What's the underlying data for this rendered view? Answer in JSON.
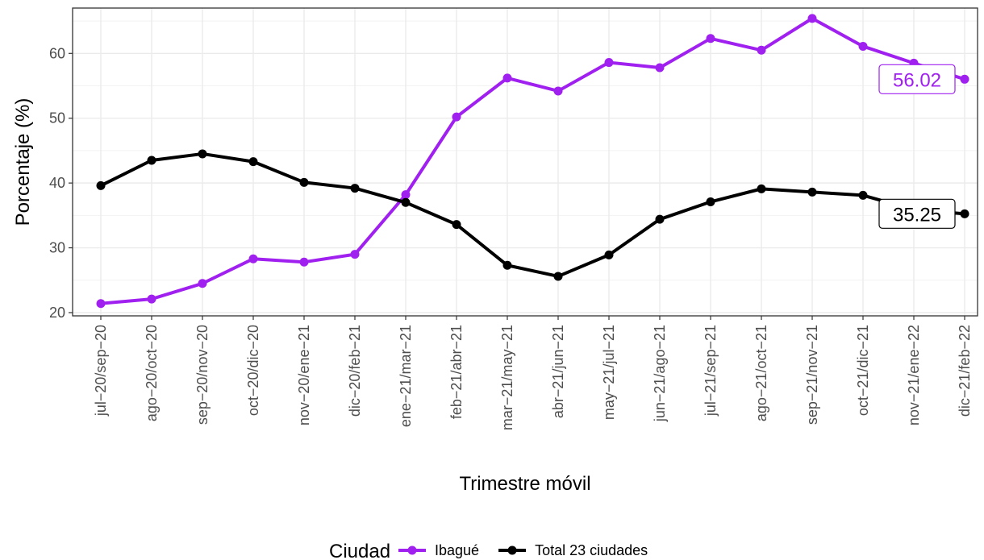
{
  "chart_data": {
    "type": "line",
    "xlabel": "Trimestre móvil",
    "ylabel": "Porcentaje (%)",
    "categories": [
      "jul−20/sep−20",
      "ago−20/oct−20",
      "sep−20/nov−20",
      "oct−20/dic−20",
      "nov−20/ene−21",
      "dic−20/feb−21",
      "ene−21/mar−21",
      "feb−21/abr−21",
      "mar−21/may−21",
      "abr−21/jun−21",
      "may−21/jul−21",
      "jun−21/ago−21",
      "jul−21/sep−21",
      "ago−21/oct−21",
      "sep−21/nov−21",
      "oct−21/dic−21",
      "nov−21/ene−22",
      "dic−21/feb−22"
    ],
    "ylim": [
      19.5,
      67
    ],
    "yticks": [
      20,
      30,
      40,
      50,
      60
    ],
    "grid": true,
    "legend_position": "bottom",
    "legend_title": "Ciudad",
    "series": [
      {
        "name": "Ibagué",
        "color": "#a020f0",
        "values": [
          21.4,
          22.1,
          24.5,
          28.3,
          27.8,
          29.0,
          38.2,
          50.2,
          56.2,
          54.2,
          58.6,
          57.8,
          62.3,
          60.5,
          65.4,
          61.1,
          58.5,
          56.02
        ],
        "end_label": "56.02"
      },
      {
        "name": "Total 23 ciudades",
        "color": "#000000",
        "values": [
          39.6,
          43.5,
          44.5,
          43.3,
          40.1,
          39.2,
          37.0,
          33.6,
          27.3,
          25.6,
          28.9,
          34.4,
          37.1,
          39.1,
          38.6,
          38.1,
          35.9,
          35.25
        ],
        "end_label": "35.25"
      }
    ]
  }
}
